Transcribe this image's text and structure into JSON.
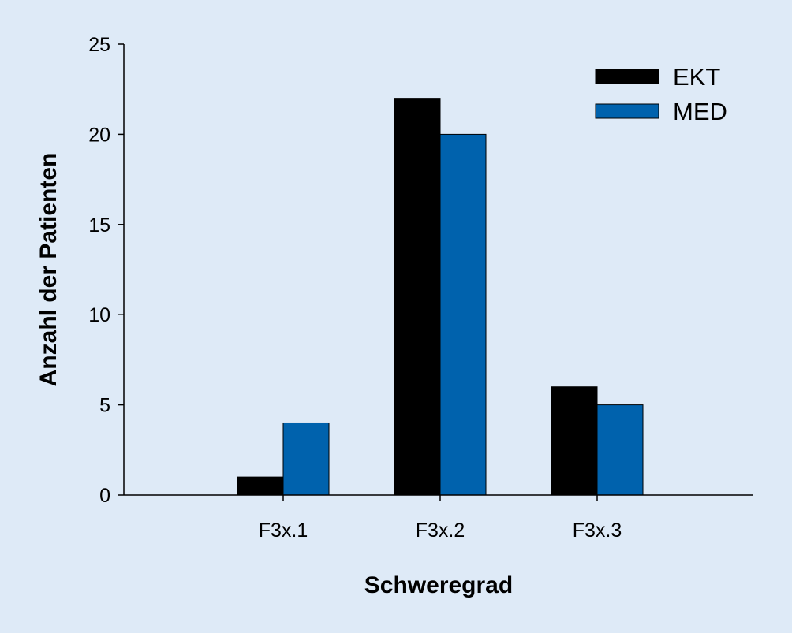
{
  "chart_data": {
    "type": "bar",
    "title": "",
    "xlabel": "Schweregrad",
    "ylabel": "Anzahl der Patienten",
    "categories": [
      "F3x.1",
      "F3x.2",
      "F3x.3"
    ],
    "series": [
      {
        "name": "EKT",
        "values": [
          1,
          22,
          6
        ],
        "color": "#000000"
      },
      {
        "name": "MED",
        "values": [
          4,
          20,
          5
        ],
        "color": "#0062ad"
      }
    ],
    "ylim": [
      0,
      25
    ],
    "yticks": [
      0,
      5,
      10,
      15,
      20,
      25
    ],
    "ytick_labels": [
      "0",
      "5",
      "10",
      "15",
      "20",
      "25"
    ],
    "grid": false,
    "legend_position": "top-right"
  }
}
